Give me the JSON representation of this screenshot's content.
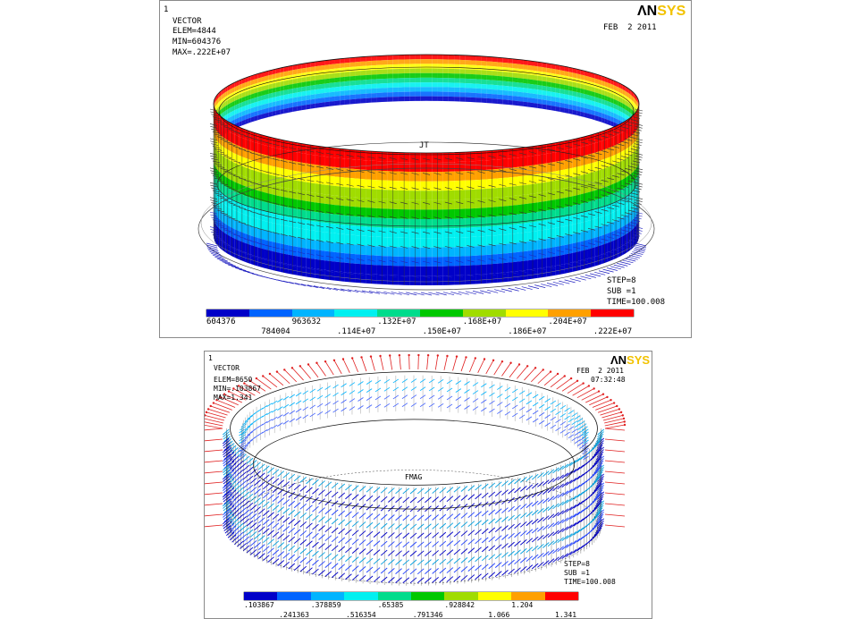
{
  "colors": {
    "scale": [
      "#0000c8",
      "#0064ff",
      "#00b4ff",
      "#00f0f0",
      "#00dc8c",
      "#00c800",
      "#a0dc00",
      "#ffff00",
      "#ffa000",
      "#ff0000"
    ],
    "vector_low": "#2020c0",
    "vector_high": "#e02020"
  },
  "panel1": {
    "plot_id": "1",
    "lines": [
      "VECTOR",
      "ELEM=4844",
      "MIN=604376",
      "MAX=.222E+07"
    ],
    "logo": {
      "an": "ΛN",
      "sys": "SYS"
    },
    "date": "FEB  2 2011",
    "label": "JT",
    "step": [
      "STEP=8",
      "SUB =1",
      "TIME=100.008"
    ],
    "legend_top": [
      "604376",
      "963632",
      ".132E+07",
      ".168E+07",
      ".204E+07"
    ],
    "legend_bottom": [
      "784004",
      ".114E+07",
      ".150E+07",
      ".186E+07",
      ".222E+07"
    ]
  },
  "panel2": {
    "plot_id": "1",
    "lines": [
      "VECTOR",
      "ELEM=8650",
      "MIN=.103867",
      "MAX=1.341"
    ],
    "logo": {
      "an": "ΛN",
      "sys": "SYS"
    },
    "date": "FEB  2 2011",
    "time": "07:32:48",
    "label": "FMAG",
    "step": [
      "STEP=8",
      "SUB =1",
      "TIME=100.008"
    ],
    "legend_top": [
      ".103867",
      ".378859",
      ".65385",
      ".928842",
      "1.204"
    ],
    "legend_bottom": [
      ".241363",
      ".516354",
      ".791346",
      "1.066",
      "1.341"
    ]
  }
}
